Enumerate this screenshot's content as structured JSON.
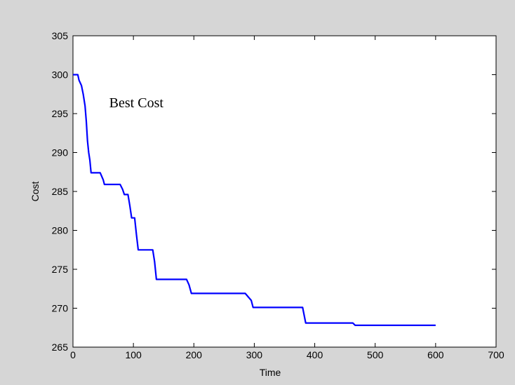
{
  "chart_data": {
    "type": "line",
    "title": "",
    "xlabel": "Time",
    "ylabel": "Cost",
    "xlim": [
      0,
      700
    ],
    "ylim": [
      265,
      305
    ],
    "xticks": [
      0,
      100,
      200,
      300,
      400,
      500,
      600,
      700
    ],
    "yticks": [
      265,
      270,
      275,
      280,
      285,
      290,
      295,
      300,
      305
    ],
    "grid": false,
    "annotations": [
      {
        "text": "Best Cost",
        "x": 60,
        "y": 295.8
      }
    ],
    "series": [
      {
        "color": "#0000ff",
        "x": [
          0,
          8,
          10,
          14,
          17,
          20,
          22,
          24,
          26,
          28,
          30,
          33,
          45,
          50,
          52,
          78,
          82,
          85,
          91,
          94,
          97,
          102,
          105,
          108,
          132,
          135,
          138,
          188,
          192,
          196,
          285,
          295,
          298,
          380,
          385,
          463,
          467,
          600
        ],
        "y": [
          300.0,
          300.0,
          299.3,
          298.6,
          297.5,
          296.0,
          294.0,
          291.5,
          290.0,
          289.0,
          287.4,
          287.4,
          287.4,
          286.5,
          285.9,
          285.9,
          285.3,
          284.6,
          284.6,
          283.2,
          281.6,
          281.6,
          279.5,
          277.5,
          277.5,
          276.0,
          273.7,
          273.7,
          273.0,
          271.9,
          271.9,
          271.0,
          270.1,
          270.1,
          268.1,
          268.1,
          267.8,
          267.8
        ]
      }
    ]
  }
}
